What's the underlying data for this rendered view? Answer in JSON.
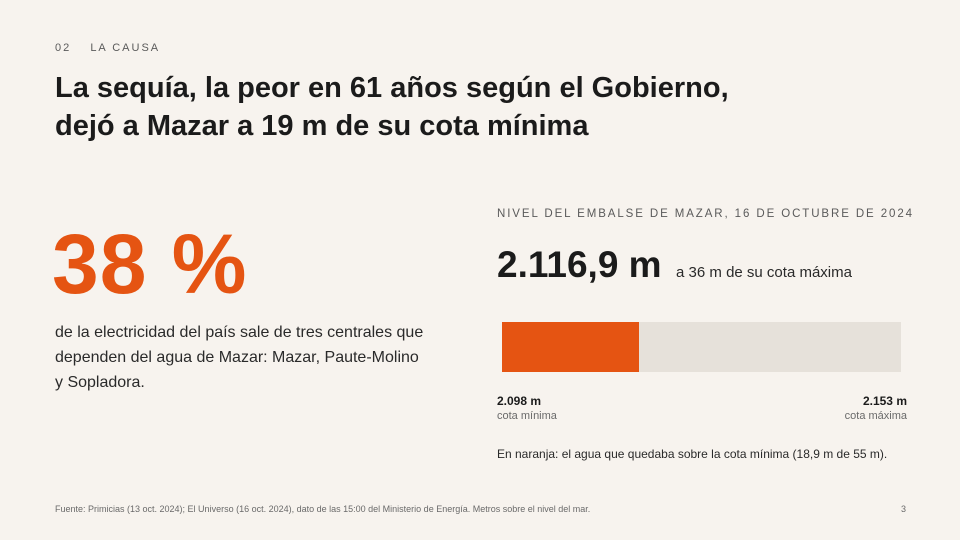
{
  "section": {
    "number": "02",
    "label": "LA CAUSA"
  },
  "title": {
    "line1": "La sequía, la peor en 61 años según el Gobierno,",
    "line2": "dejó a Mazar a 19 m de su cota mínima"
  },
  "stat": {
    "value": "38 %",
    "description": "de la electricidad del país sale de tres centrales que dependen del agua de Mazar: Mazar, Paute-Molino y Sopladora."
  },
  "reservoir": {
    "heading": "NIVEL DEL EMBALSE DE MAZAR, 16 DE OCTUBRE DE 2024",
    "level": "2.116,9 m",
    "level_note": "a 36 m de su cota máxima",
    "fill_fraction": 0.344,
    "min_value": "2.098 m",
    "min_label": "cota mínima",
    "max_value": "2.153 m",
    "max_label": "cota máxima",
    "legend": "En naranja: el agua que quedaba sobre la cota mínima (18,9 m de 55 m).",
    "colors": {
      "fill": "#e55412",
      "track": "#e6e1da"
    }
  },
  "footer": {
    "source": "Fuente: Primicias (13 oct. 2024); El Universo (16 oct. 2024), dato de las 15:00 del Ministerio de Energía. Metros sobre el nivel del mar.",
    "page": "3"
  },
  "colors": {
    "accent": "#e55412",
    "background": "#f7f3ee",
    "text": "#1b1b1b"
  }
}
